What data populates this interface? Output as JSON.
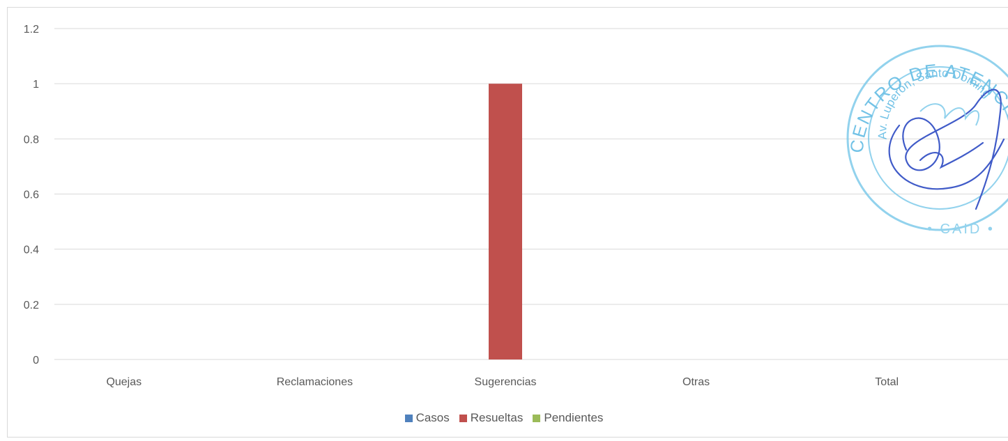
{
  "chart_data": {
    "type": "bar",
    "categories": [
      "Quejas",
      "Reclamaciones",
      "Sugerencias",
      "Otras",
      "Total"
    ],
    "series": [
      {
        "name": "Casos",
        "color": "#4f81bd",
        "values": [
          0,
          0,
          0,
          0,
          0
        ]
      },
      {
        "name": "Resueltas",
        "color": "#c0504d",
        "values": [
          0,
          0,
          1,
          0,
          0
        ]
      },
      {
        "name": "Pendientes",
        "color": "#9bbb59",
        "values": [
          0,
          0,
          0,
          0,
          0
        ]
      }
    ],
    "yticks": [
      "0",
      "0.2",
      "0.4",
      "0.6",
      "0.8",
      "1",
      "1.2"
    ],
    "ylim": [
      0,
      1.2
    ],
    "grid": true,
    "legend_position": "bottom"
  },
  "stamp": {
    "text_top": "CENTRO DE ATENCION INTEGRAL P",
    "text_inner": "Av. Luperón, Santo Doming",
    "text_bottom": "CAID",
    "ink_color": "#4fb3e0",
    "signature_color": "#1f3fbf"
  }
}
